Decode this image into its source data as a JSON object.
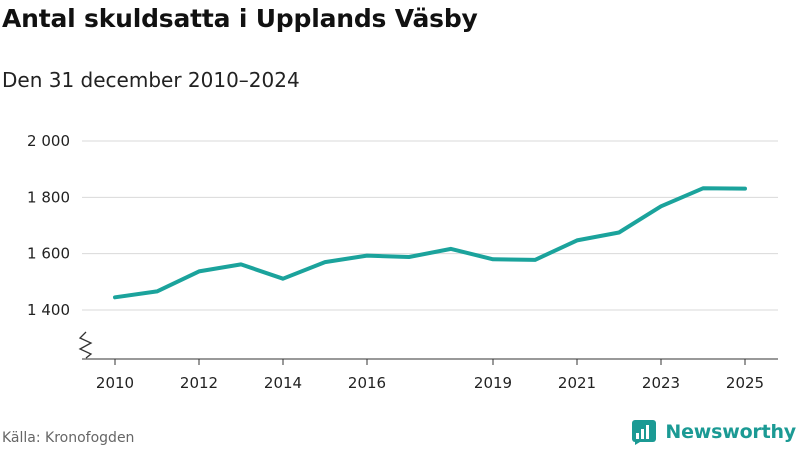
{
  "title": "Antal skuldsatta i Upplands Väsby",
  "subtitle": "Den 31 december 2010–2024",
  "source": "Källa: Kronofogden",
  "brand": {
    "name": "Newsworthy",
    "icon": "bar-chart-logo-icon",
    "color": "#1b9a94"
  },
  "colors": {
    "line": "#1ba39c",
    "grid": "#d9d9d9",
    "axis": "#333333"
  },
  "chart_data": {
    "type": "line",
    "title": "Antal skuldsatta i Upplands Väsby",
    "xlabel": "",
    "ylabel": "",
    "x": [
      2010,
      2011,
      2012,
      2013,
      2014,
      2015,
      2016,
      2017,
      2018,
      2019,
      2020,
      2021,
      2022,
      2023,
      2024,
      2025
    ],
    "series": [
      {
        "name": "Antal skuldsatta",
        "values": [
          1445,
          1466,
          1537,
          1562,
          1511,
          1570,
          1593,
          1588,
          1617,
          1580,
          1578,
          1647,
          1675,
          1768,
          1832,
          1831
        ]
      }
    ],
    "xlim": [
      2010,
      2025
    ],
    "ylim": [
      1300,
      2000
    ],
    "y_ticks": [
      1400,
      1600,
      1800,
      2000
    ],
    "y_tick_labels": [
      "1 400",
      "1 600",
      "1 800",
      "2 000"
    ],
    "x_ticks": [
      2010,
      2012,
      2014,
      2016,
      2019,
      2021,
      2023,
      2025
    ],
    "x_tick_labels": [
      "2010",
      "2012",
      "2014",
      "2016",
      "2019",
      "2021",
      "2023",
      "2025"
    ],
    "axis_break": true,
    "grid": true
  }
}
